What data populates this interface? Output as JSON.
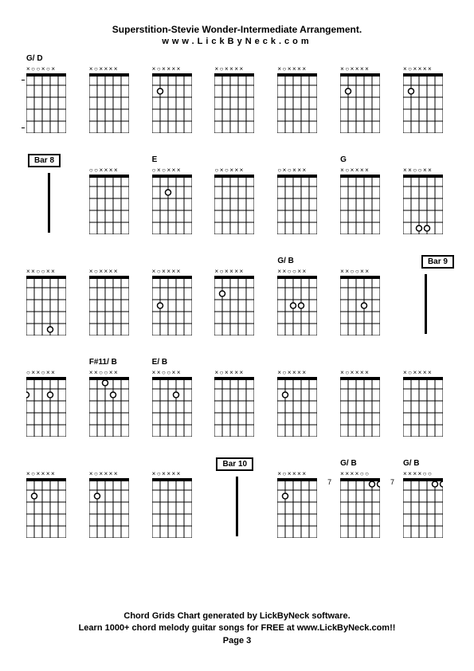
{
  "title": "Superstition-Stevie Wonder-Intermediate Arrangement.",
  "subtitle": "www.LickByNeck.com",
  "footer_line1": "Chord Grids Chart generated by LickByNeck software.",
  "footer_line2": "Learn 1000+ chord melody guitar songs for FREE at www.LickByNeck.com!!",
  "footer_page": "Page 3",
  "diagram": {
    "width": 50,
    "height": 75,
    "strings": 6,
    "frets": 5,
    "nut_color": "#000000",
    "line_color": "#000000",
    "bg_color": "#ffffff",
    "dot_radius": 3.5
  },
  "rows": [
    [
      {
        "label": "G/ D",
        "marks": "x··x·x",
        "dots": [],
        "ticks": [
          0,
          4
        ]
      },
      {
        "label": "",
        "marks": "x·xxxx",
        "dots": [],
        "ticks": []
      },
      {
        "label": "",
        "marks": "x·xxxx",
        "dots": [
          {
            "s": 2,
            "f": 2
          }
        ],
        "ticks": []
      },
      {
        "label": "",
        "marks": "x·xxxx",
        "dots": [],
        "ticks": []
      },
      {
        "label": "",
        "marks": "x·xxxx",
        "dots": [],
        "ticks": []
      },
      {
        "label": "",
        "marks": "x·xxxx",
        "dots": [
          {
            "s": 2,
            "f": 2
          }
        ],
        "ticks": []
      },
      {
        "label": "",
        "marks": "x·xxxx",
        "dots": [
          {
            "s": 2,
            "f": 2
          }
        ],
        "ticks": []
      }
    ],
    [
      {
        "bar": "Bar 8"
      },
      {
        "label": "",
        "marks": "··xxxx",
        "dots": [],
        "ticks": []
      },
      {
        "label": "E",
        "marks": "·x·xxx",
        "dots": [
          {
            "s": 3,
            "f": 2
          }
        ],
        "ticks": []
      },
      {
        "label": "",
        "marks": "·x·xxx",
        "dots": [],
        "ticks": []
      },
      {
        "label": "",
        "marks": "·x·xxx",
        "dots": [],
        "ticks": []
      },
      {
        "label": "G",
        "marks": "x·xxxx",
        "dots": [],
        "ticks": []
      },
      {
        "label": "",
        "marks": "xx··xx",
        "dots": [
          {
            "s": 3,
            "f": 5,
            "open": true
          },
          {
            "s": 4,
            "f": 5,
            "open": true
          }
        ],
        "ticks": []
      }
    ],
    [
      {
        "label": "",
        "marks": "xx··xx",
        "dots": [
          {
            "s": 4,
            "f": 5,
            "open": true
          }
        ],
        "ticks": []
      },
      {
        "label": "",
        "marks": "x·xxxx",
        "dots": [],
        "ticks": []
      },
      {
        "label": "",
        "marks": "x·xxxx",
        "dots": [
          {
            "s": 2,
            "f": 3
          }
        ],
        "ticks": []
      },
      {
        "label": "",
        "marks": "x·xxxx",
        "dots": [
          {
            "s": 2,
            "f": 2
          }
        ],
        "ticks": []
      },
      {
        "label": "G/ B",
        "marks": "xx··xx",
        "dots": [
          {
            "s": 3,
            "f": 3
          },
          {
            "s": 4,
            "f": 3,
            "open": true
          }
        ],
        "ticks": []
      },
      {
        "label": "",
        "marks": "xx··xx",
        "dots": [
          {
            "s": 4,
            "f": 3,
            "open": true
          }
        ],
        "ticks": []
      },
      {
        "bar": "Bar 9",
        "right": true
      }
    ],
    [
      {
        "label": "",
        "marks": "·xx·xx",
        "dots": [
          {
            "s": 1,
            "f": 2,
            "open": true
          },
          {
            "s": 4,
            "f": 2,
            "open": true
          }
        ],
        "ticks": []
      },
      {
        "label": "F#11/ B",
        "marks": "xx··xx",
        "dots": [
          {
            "s": 3,
            "f": 1
          },
          {
            "s": 4,
            "f": 2,
            "open": true
          }
        ],
        "ticks": []
      },
      {
        "label": "E/ B",
        "marks": "xx··xx",
        "dots": [
          {
            "s": 4,
            "f": 2,
            "open": true
          }
        ],
        "ticks": []
      },
      {
        "label": "",
        "marks": "x·xxxx",
        "dots": [],
        "ticks": []
      },
      {
        "label": "",
        "marks": "x·xxxx",
        "dots": [
          {
            "s": 2,
            "f": 2
          }
        ],
        "ticks": []
      },
      {
        "label": "",
        "marks": "x·xxxx",
        "dots": [],
        "ticks": []
      },
      {
        "label": "",
        "marks": "x·xxxx",
        "dots": [],
        "ticks": []
      }
    ],
    [
      {
        "label": "",
        "marks": "x·xxxx",
        "dots": [
          {
            "s": 2,
            "f": 2
          }
        ],
        "ticks": []
      },
      {
        "label": "",
        "marks": "x·xxxx",
        "dots": [
          {
            "s": 2,
            "f": 2
          }
        ],
        "ticks": []
      },
      {
        "label": "",
        "marks": "x·xxxx",
        "dots": [],
        "ticks": []
      },
      {
        "bar": "Bar 10"
      },
      {
        "label": "",
        "marks": "x·xxxx",
        "dots": [
          {
            "s": 2,
            "f": 2
          }
        ],
        "ticks": []
      },
      {
        "label": "G/ B",
        "marks": "xxxx··",
        "dots": [
          {
            "s": 5,
            "f": 1,
            "open": true
          },
          {
            "s": 6,
            "f": 1,
            "open": true
          }
        ],
        "fret": "7",
        "ticks": []
      },
      {
        "label": "G/ B",
        "marks": "xxxx··",
        "dots": [
          {
            "s": 5,
            "f": 1,
            "open": true
          },
          {
            "s": 6,
            "f": 1,
            "open": true
          }
        ],
        "fret": "7",
        "ticks": []
      }
    ]
  ]
}
